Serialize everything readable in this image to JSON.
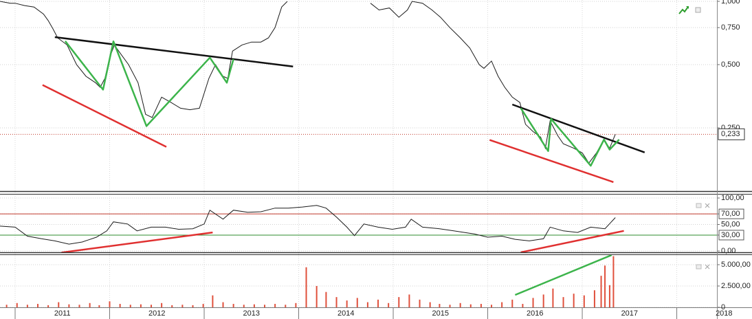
{
  "chart_data": [
    {
      "type": "line",
      "log_scale": true,
      "x": [
        2010.84,
        2010.95,
        2011.0,
        2011.1,
        2011.2,
        2011.3,
        2011.35,
        2011.4,
        2011.45,
        2011.55,
        2011.65,
        2011.75,
        2011.85,
        2011.9,
        2011.95,
        2012.0,
        2012.05,
        2012.12,
        2012.2,
        2012.3,
        2012.38,
        2012.45,
        2012.55,
        2012.65,
        2012.75,
        2012.85,
        2012.95,
        2013.05,
        2013.12,
        2013.2,
        2013.25,
        2013.3,
        2013.4,
        2013.5,
        2013.6,
        2013.68,
        2013.75,
        2013.82,
        2013.88,
        2014.3,
        2014.76,
        2014.85,
        2014.96,
        2015.06,
        2015.15,
        2015.2,
        2015.31,
        2015.41,
        2015.5,
        2015.6,
        2015.71,
        2015.81,
        2015.91,
        2015.96,
        2016.04,
        2016.11,
        2016.18,
        2016.26,
        2016.34,
        2016.4,
        2016.48,
        2016.56,
        2016.61,
        2016.66,
        2016.74,
        2016.8,
        2016.91,
        2017.0,
        2017.07,
        2017.15,
        2017.23,
        2017.29,
        2017.35
      ],
      "series": [
        {
          "color": "#1a1a1a",
          "values": [
            1.0,
            0.98,
            0.98,
            0.955,
            0.94,
            0.87,
            0.81,
            0.74,
            0.67,
            0.62,
            0.5,
            0.44,
            0.41,
            0.39,
            0.43,
            0.54,
            0.62,
            0.56,
            0.5,
            0.41,
            0.29,
            0.28,
            0.35,
            0.33,
            0.31,
            0.305,
            0.31,
            0.43,
            0.5,
            0.44,
            0.43,
            0.58,
            0.62,
            0.64,
            0.64,
            0.67,
            0.75,
            0.94,
            1.0,
            null,
            0.98,
            0.91,
            0.93,
            0.84,
            0.91,
            1.0,
            0.98,
            0.91,
            0.84,
            0.75,
            0.67,
            0.6,
            0.5,
            0.48,
            0.52,
            0.44,
            0.39,
            0.35,
            0.33,
            0.26,
            0.24,
            0.226,
            0.2,
            0.27,
            0.23,
            0.21,
            0.2,
            0.19,
            0.17,
            0.19,
            0.22,
            0.2,
            0.233
          ]
        }
      ],
      "ylim": [
        0.125,
        1.015
      ],
      "yticks": [
        {
          "value": 0.25,
          "label": "0,250"
        },
        {
          "value": 0.5,
          "label": "0,500"
        },
        {
          "value": 0.75,
          "label": "0,750"
        },
        {
          "value": 1,
          "label": "1,000"
        }
      ],
      "last_value": {
        "value": 0.233,
        "label": "0,233",
        "color": "#c0392b"
      },
      "trendlines": [
        {
          "color": "#111111",
          "x": [
            2011.42,
            2013.94
          ],
          "y": [
            0.676,
            0.49
          ]
        },
        {
          "color": "#e03030",
          "x": [
            2011.29,
            2012.6
          ],
          "y": [
            0.4,
            0.203
          ]
        },
        {
          "color": "#3cb44b",
          "x": [
            2011.53,
            2011.93,
            2012.04,
            2012.39,
            2013.06,
            2013.24,
            2013.31
          ],
          "y": [
            0.647,
            0.38,
            0.645,
            0.255,
            0.54,
            0.41,
            0.53
          ]
        },
        {
          "color": "#111111",
          "x": [
            2016.26,
            2017.66
          ],
          "y": [
            0.323,
            0.191
          ]
        },
        {
          "color": "#e03030",
          "x": [
            2016.02,
            2017.33
          ],
          "y": [
            0.219,
            0.138
          ]
        },
        {
          "color": "#3cb44b",
          "x": [
            2016.35,
            2016.64,
            2016.67,
            2017.09,
            2017.23,
            2017.29,
            2017.39
          ],
          "y": [
            0.31,
            0.194,
            0.276,
            0.165,
            0.22,
            0.197,
            0.22
          ]
        }
      ]
    },
    {
      "type": "line",
      "x": [
        2010.84,
        2011.0,
        2011.13,
        2011.28,
        2011.42,
        2011.57,
        2011.71,
        2011.86,
        2011.97,
        2012.04,
        2012.19,
        2012.29,
        2012.44,
        2012.59,
        2012.73,
        2012.88,
        2013.0,
        2013.06,
        2013.2,
        2013.31,
        2013.46,
        2013.6,
        2013.75,
        2013.89,
        2014.04,
        2014.19,
        2014.29,
        2014.4,
        2014.51,
        2014.59,
        2014.69,
        2014.84,
        2014.99,
        2015.13,
        2015.19,
        2015.31,
        2015.49,
        2015.64,
        2015.86,
        2016.0,
        2016.15,
        2016.29,
        2016.44,
        2016.59,
        2016.66,
        2016.8,
        2016.95,
        2017.09,
        2017.24,
        2017.35
      ],
      "series": [
        {
          "color": "#1a1a1a",
          "values": [
            47,
            45,
            28,
            23,
            19,
            13,
            17,
            26,
            38,
            55,
            51,
            38,
            45,
            45,
            41,
            42,
            51,
            77,
            60,
            77,
            73,
            74,
            81,
            81,
            83,
            86,
            81,
            64,
            45,
            29,
            51,
            45,
            41,
            45,
            60,
            45,
            42,
            38,
            32,
            26,
            28,
            22,
            19,
            23,
            45,
            38,
            35,
            45,
            42,
            63
          ]
        }
      ],
      "ylim": [
        -2.5,
        106.5
      ],
      "yticks": [
        {
          "value": 0,
          "label": "0,00"
        },
        {
          "value": 30,
          "label": "30,00"
        },
        {
          "value": 50,
          "label": "50,00"
        },
        {
          "value": 70,
          "label": "70,00"
        },
        {
          "value": 100,
          "label": "100,00"
        }
      ],
      "levels": [
        {
          "value": 70,
          "color": "#c0392b"
        },
        {
          "value": 30,
          "color": "#2e8b2e"
        }
      ],
      "trendlines": [
        {
          "color": "#e03030",
          "x": [
            2011.49,
            2013.09
          ],
          "y": [
            -3,
            35
          ]
        },
        {
          "color": "#e03030",
          "x": [
            2016.35,
            2017.44
          ],
          "y": [
            -2.5,
            38
          ]
        }
      ]
    },
    {
      "type": "bar",
      "color": "#e0503c",
      "x": [
        2010.91,
        2011.02,
        2011.13,
        2011.24,
        2011.35,
        2011.46,
        2011.57,
        2011.68,
        2011.79,
        2011.89,
        2012.0,
        2012.11,
        2012.22,
        2012.33,
        2012.44,
        2012.55,
        2012.66,
        2012.77,
        2012.88,
        2012.99,
        2013.09,
        2013.2,
        2013.31,
        2013.42,
        2013.53,
        2013.64,
        2013.75,
        2013.86,
        2013.97,
        2014.08,
        2014.19,
        2014.29,
        2014.4,
        2014.51,
        2014.62,
        2014.73,
        2014.84,
        2014.95,
        2015.06,
        2015.17,
        2015.28,
        2015.39,
        2015.49,
        2015.6,
        2015.71,
        2015.82,
        2015.93,
        2016.04,
        2016.15,
        2016.26,
        2016.37,
        2016.48,
        2016.59,
        2016.69,
        2016.8,
        2016.91,
        2017.02,
        2017.13,
        2017.2,
        2017.24,
        2017.29,
        2017.33
      ],
      "values": [
        300,
        500,
        300,
        400,
        250,
        600,
        350,
        300,
        500,
        250,
        700,
        400,
        300,
        350,
        300,
        500,
        250,
        300,
        250,
        400,
        1400,
        600,
        400,
        300,
        350,
        300,
        400,
        300,
        500,
        4700,
        2500,
        1800,
        1200,
        800,
        1100,
        600,
        900,
        500,
        1200,
        1500,
        900,
        600,
        400,
        300,
        500,
        350,
        400,
        300,
        600,
        900,
        400,
        1100,
        1500,
        2200,
        1200,
        1600,
        1400,
        2000,
        3700,
        4900,
        2600,
        6000
      ],
      "ylim": [
        0,
        6130
      ],
      "yticks": [
        0,
        {
          "value": 2500,
          "label": "2.500,00"
        },
        {
          "value": 5000,
          "label": "5.000,00"
        }
      ],
      "trendlines": [
        {
          "color": "#3cb44b",
          "x": [
            2016.29,
            2017.31
          ],
          "y": [
            1450,
            6130
          ]
        }
      ],
      "xlim": [
        2010.84,
        2018.425
      ],
      "xticks": [
        {
          "value": 2011.5,
          "label": "2011"
        },
        {
          "value": 2012.5,
          "label": "2012"
        },
        {
          "value": 2013.5,
          "label": "2013"
        },
        {
          "value": 2014.5,
          "label": "2014"
        },
        {
          "value": 2015.5,
          "label": "2015"
        },
        {
          "value": 2016.5,
          "label": "2016"
        },
        {
          "value": 2017.5,
          "label": "2017"
        },
        {
          "value": 2018.5,
          "label": "2018"
        }
      ]
    }
  ]
}
